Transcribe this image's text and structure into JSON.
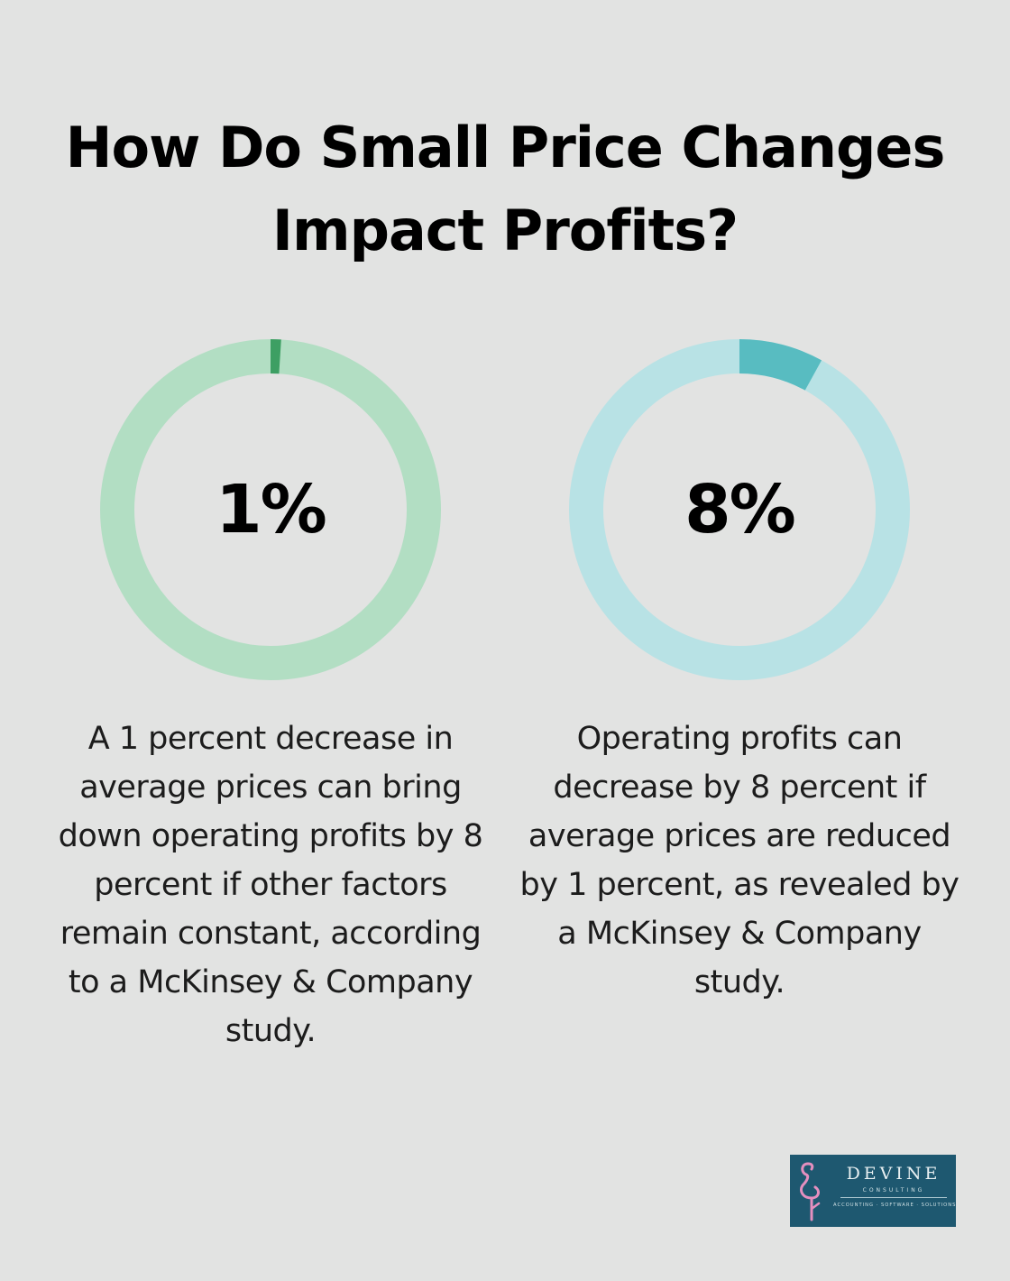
{
  "title": "How Do Small Price Changes Impact Profits?",
  "chart_data": [
    {
      "type": "pie",
      "value": 1,
      "max": 100,
      "label": "1%",
      "description": "A 1 percent decrease in average prices can bring down operating profits by 8 percent if other factors remain constant, according to a McKinsey & Company study.",
      "colors": {
        "fill": "#3d9f63",
        "track": "#b2dec3"
      }
    },
    {
      "type": "pie",
      "value": 8,
      "max": 100,
      "label": "8%",
      "description": "Operating profits can decrease by 8 percent if average prices are reduced by 1 percent, as revealed by a McKinsey & Company study.",
      "colors": {
        "fill": "#58bcc1",
        "track": "#b8e2e5"
      }
    }
  ],
  "logo": {
    "name": "DEVINE",
    "subtitle": "CONSULTING",
    "tagline": "ACCOUNTING · SOFTWARE · SOLUTIONS",
    "icon": "flamingo-icon",
    "colors": {
      "background": "#1e5870",
      "flamingo": "#e58fbf"
    }
  }
}
